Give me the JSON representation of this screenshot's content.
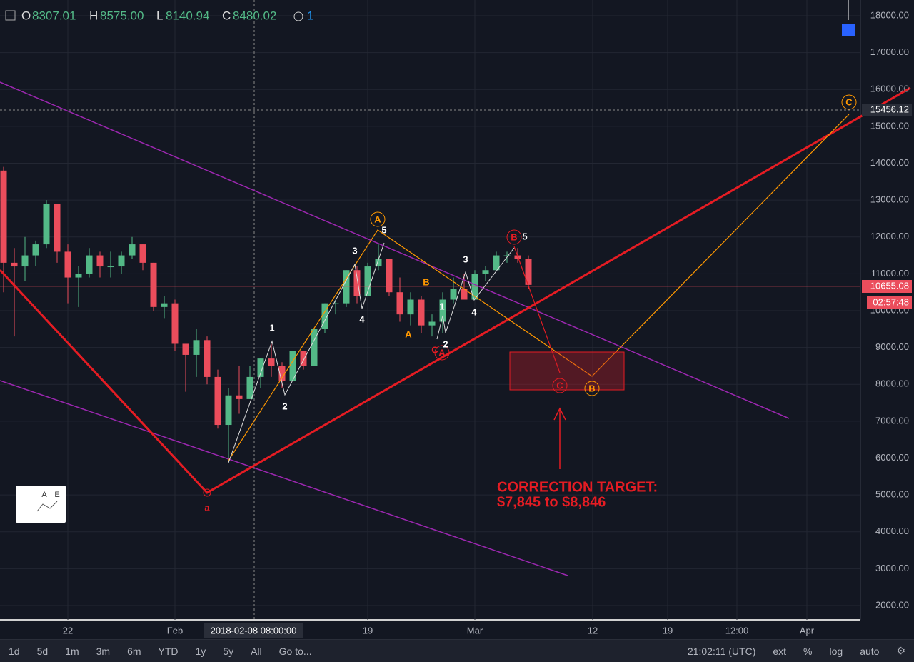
{
  "header": {
    "o_label": "O",
    "open": "8307.01",
    "h_label": "H",
    "high": "8575.00",
    "l_label": "L",
    "low": "8140.94",
    "c_label": "C",
    "close": "8480.02",
    "alerts": "1"
  },
  "price_axis": {
    "ticks": [
      {
        "value": 2000,
        "label": "2000.00"
      },
      {
        "value": 3000,
        "label": "3000.00"
      },
      {
        "value": 4000,
        "label": "4000.00"
      },
      {
        "value": 5000,
        "label": "5000.00"
      },
      {
        "value": 6000,
        "label": "6000.00"
      },
      {
        "value": 7000,
        "label": "7000.00"
      },
      {
        "value": 8000,
        "label": "8000.00"
      },
      {
        "value": 9000,
        "label": "9000.00"
      },
      {
        "value": 10000,
        "label": "10000.00"
      },
      {
        "value": 11000,
        "label": "11000.00"
      },
      {
        "value": 12000,
        "label": "12000.00"
      },
      {
        "value": 13000,
        "label": "13000.00"
      },
      {
        "value": 14000,
        "label": "14000.00"
      },
      {
        "value": 15000,
        "label": "15000.00"
      },
      {
        "value": 16000,
        "label": "16000.00"
      },
      {
        "value": 17000,
        "label": "17000.00"
      },
      {
        "value": 18000,
        "label": "18000.00"
      }
    ],
    "crosshair_price": "15456.12",
    "last_price": "10655.08",
    "countdown": "02:57:48"
  },
  "time_axis": {
    "labels": [
      "22",
      "Feb",
      "19",
      "Mar",
      "12",
      "19",
      "12:00",
      "Apr"
    ],
    "crosshair_time": "2018-02-08 08:00:00"
  },
  "candles": [
    [
      13800,
      13900,
      10500,
      11300
    ],
    [
      11300,
      11700,
      9300,
      11200
    ],
    [
      11200,
      12000,
      10800,
      11500
    ],
    [
      11500,
      11900,
      11200,
      11800
    ],
    [
      11800,
      13000,
      11700,
      12900
    ],
    [
      12900,
      12900,
      11300,
      11600
    ],
    [
      11600,
      11800,
      10200,
      10900
    ],
    [
      10900,
      11200,
      10100,
      11000
    ],
    [
      11000,
      11700,
      10900,
      11500
    ],
    [
      11500,
      11600,
      10900,
      11200
    ],
    [
      11200,
      11600,
      10900,
      11200
    ],
    [
      11200,
      11600,
      11000,
      11500
    ],
    [
      11500,
      12000,
      11400,
      11800
    ],
    [
      11800,
      11800,
      11100,
      11300
    ],
    [
      11300,
      11300,
      10000,
      10100
    ],
    [
      10100,
      10400,
      9800,
      10200
    ],
    [
      10200,
      10300,
      8900,
      9100
    ],
    [
      9100,
      9100,
      7800,
      8800
    ],
    [
      8800,
      9500,
      8200,
      9200
    ],
    [
      9200,
      9300,
      8000,
      8200
    ],
    [
      8200,
      8400,
      6800,
      6900
    ],
    [
      6900,
      7900,
      5900,
      7700
    ],
    [
      7700,
      8500,
      7200,
      7600
    ],
    [
      7600,
      8500,
      7600,
      8200
    ],
    [
      8200,
      8700,
      7900,
      8700
    ],
    [
      8700,
      9100,
      8200,
      8500
    ],
    [
      8500,
      8600,
      7900,
      8100
    ],
    [
      8100,
      8900,
      8100,
      8900
    ],
    [
      8900,
      8900,
      8400,
      8500
    ],
    [
      8500,
      9500,
      8500,
      9500
    ],
    [
      9500,
      10200,
      9400,
      10200
    ],
    [
      10200,
      10300,
      9900,
      10200
    ],
    [
      10200,
      11100,
      10100,
      11100
    ],
    [
      11100,
      11200,
      10200,
      10400
    ],
    [
      10400,
      11300,
      10400,
      11200
    ],
    [
      11200,
      11800,
      11100,
      11400
    ],
    [
      11400,
      11400,
      10400,
      10500
    ],
    [
      10500,
      10900,
      9700,
      9900
    ],
    [
      9900,
      10500,
      9600,
      10300
    ],
    [
      10300,
      10400,
      9400,
      9600
    ],
    [
      9600,
      9900,
      9300,
      9700
    ],
    [
      9700,
      10500,
      9400,
      10300
    ],
    [
      10300,
      10900,
      10200,
      10600
    ],
    [
      10600,
      11000,
      10300,
      10300
    ],
    [
      10300,
      11100,
      10300,
      11000
    ],
    [
      11000,
      11200,
      10800,
      11100
    ],
    [
      11100,
      11600,
      11100,
      11500
    ],
    [
      11500,
      11600,
      11300,
      11500
    ],
    [
      11500,
      11700,
      11300,
      11400
    ],
    [
      11400,
      11500,
      10600,
      10700
    ]
  ],
  "annotations": {
    "waves": [
      "A",
      "5",
      "3",
      "4",
      "1",
      "2",
      "3",
      "1",
      "2",
      "4",
      "B",
      "A",
      "C",
      "A",
      "B",
      "5",
      "a",
      "C",
      "B",
      "C"
    ],
    "target_title": "CORRECTION TARGET:",
    "target_range": "$7,845 to $8,846",
    "indicator_a": "A",
    "indicator_e": "E"
  },
  "toolbar": {
    "ranges": [
      "1d",
      "5d",
      "1m",
      "3m",
      "6m",
      "YTD",
      "1y",
      "5y",
      "All"
    ],
    "goto": "Go to...",
    "clock": "21:02:11 (UTC)",
    "options": [
      "ext",
      "%",
      "log",
      "auto"
    ]
  }
}
